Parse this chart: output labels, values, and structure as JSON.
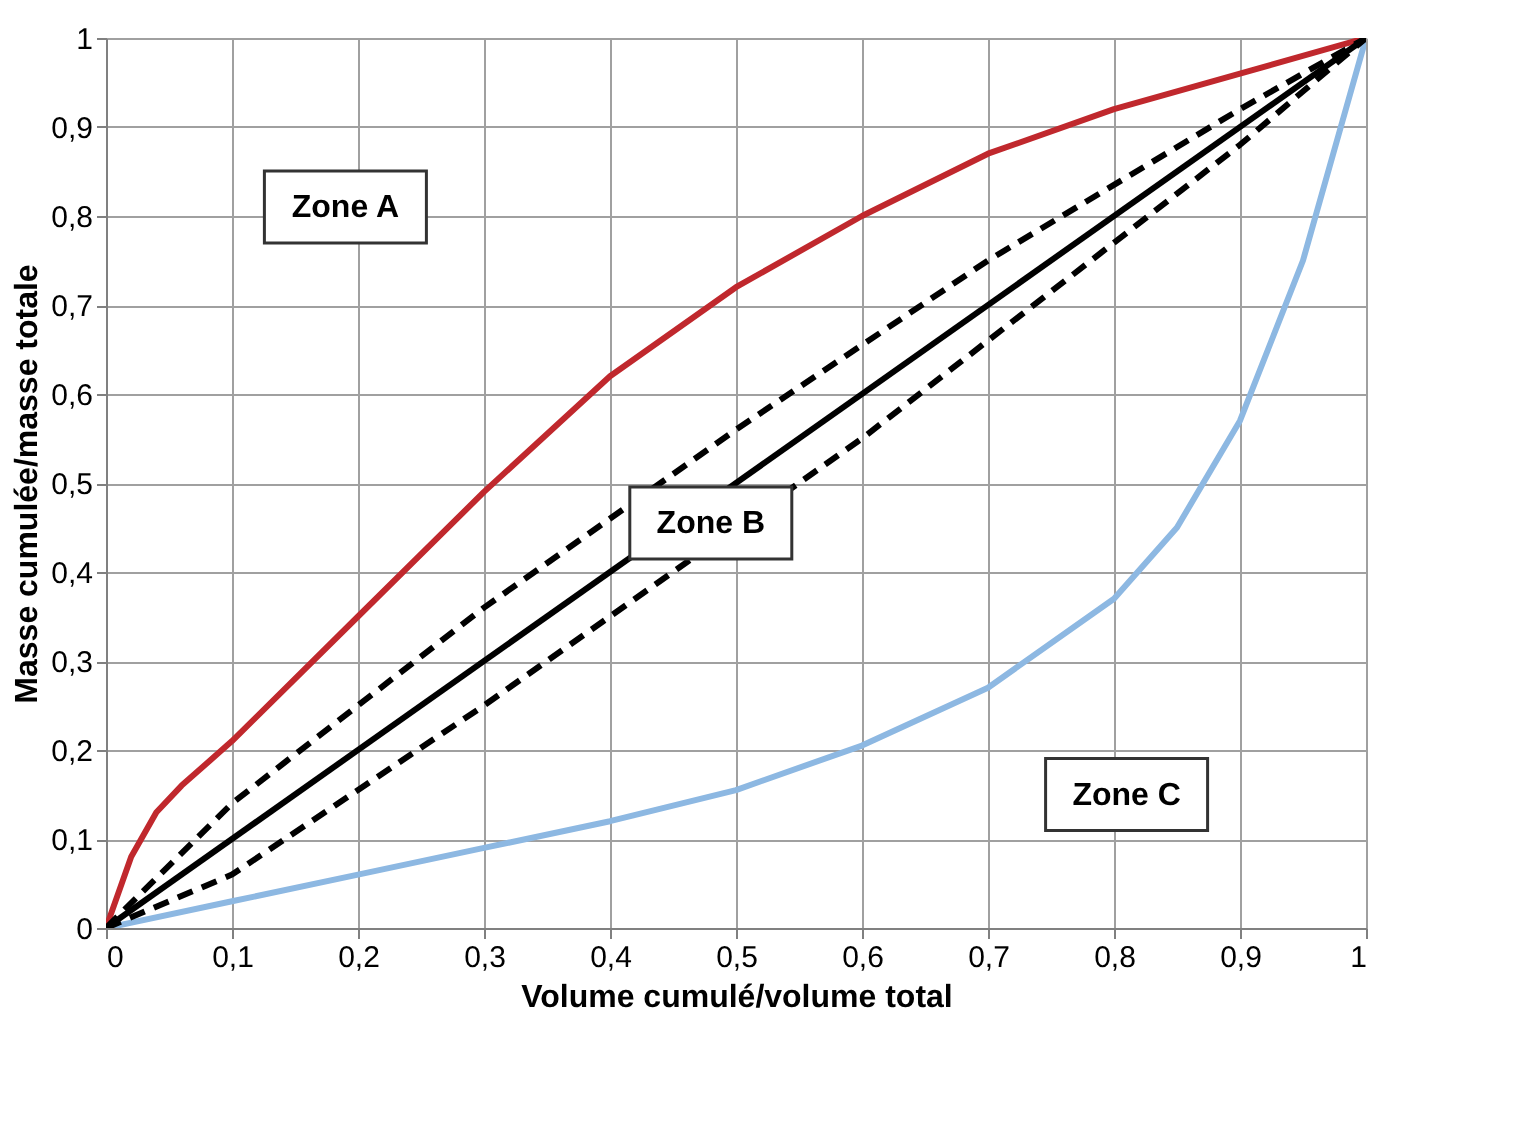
{
  "chart_data": {
    "type": "line",
    "xlabel": "Volume cumulé/volume total",
    "ylabel": "Masse cumulée/masse totale",
    "xlim": [
      0,
      1
    ],
    "ylim": [
      0,
      1
    ],
    "xticks": [
      0,
      {
        "value": 0.1,
        "label": "0,1"
      },
      {
        "value": 0.2,
        "label": "0,2"
      },
      {
        "value": 0.3,
        "label": "0,3"
      },
      {
        "value": 0.4,
        "label": "0,4"
      },
      {
        "value": 0.5,
        "label": "0,5"
      },
      {
        "value": 0.6,
        "label": "0,6"
      },
      {
        "value": 0.7,
        "label": "0,7"
      },
      {
        "value": 0.8,
        "label": "0,8"
      },
      {
        "value": 0.9,
        "label": "0,9"
      },
      1
    ],
    "yticks": [
      0,
      {
        "value": 0.1,
        "label": "0,1"
      },
      {
        "value": 0.2,
        "label": "0,2"
      },
      {
        "value": 0.3,
        "label": "0,3"
      },
      {
        "value": 0.4,
        "label": "0,4"
      },
      {
        "value": 0.5,
        "label": "0,5"
      },
      {
        "value": 0.6,
        "label": "0,6"
      },
      {
        "value": 0.7,
        "label": "0,7"
      },
      {
        "value": 0.8,
        "label": "0,8"
      },
      {
        "value": 0.9,
        "label": "0,9"
      },
      1
    ],
    "grid": true,
    "marker": "none",
    "series": [
      {
        "color": "#c0282d",
        "line_style": "solid",
        "x": [
          0,
          0.02,
          0.04,
          0.06,
          0.1,
          0.2,
          0.3,
          0.4,
          0.5,
          0.6,
          0.7,
          0.8,
          0.9,
          1
        ],
        "values": [
          0,
          0.08,
          0.13,
          0.16,
          0.21,
          0.35,
          0.49,
          0.62,
          0.72,
          0.8,
          0.87,
          0.92,
          0.96,
          1
        ]
      },
      {
        "color": "#8db8e2",
        "line_style": "solid",
        "x": [
          0,
          0.1,
          0.2,
          0.3,
          0.4,
          0.5,
          0.6,
          0.7,
          0.8,
          0.85,
          0.9,
          0.95,
          0.98,
          1
        ],
        "values": [
          0,
          0.03,
          0.06,
          0.09,
          0.12,
          0.155,
          0.205,
          0.27,
          0.37,
          0.45,
          0.57,
          0.75,
          0.9,
          1
        ]
      },
      {
        "color": "#000000",
        "line_style": "solid",
        "x": [
          0,
          1
        ],
        "values": [
          0,
          1
        ]
      },
      {
        "color": "#000000",
        "line_style": "dashed",
        "x": [
          0,
          0.1,
          0.3,
          0.5,
          0.7,
          0.9,
          1
        ],
        "values": [
          0,
          0.14,
          0.36,
          0.56,
          0.75,
          0.92,
          1
        ]
      },
      {
        "color": "#000000",
        "line_style": "dashed",
        "x": [
          0,
          0.1,
          0.3,
          0.4,
          0.6,
          0.7,
          0.9,
          1
        ],
        "values": [
          0,
          0.06,
          0.25,
          0.35,
          0.55,
          0.66,
          0.88,
          1
        ]
      }
    ],
    "annotations": [
      "Zone A",
      "Zone B",
      "Zone C"
    ]
  }
}
